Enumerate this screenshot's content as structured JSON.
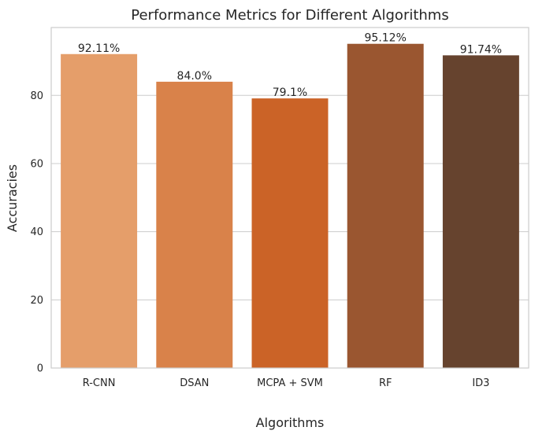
{
  "chart_data": {
    "type": "bar",
    "title": "Performance Metrics for Different Algorithms",
    "xlabel": "Algorithms",
    "ylabel": "Accuracies",
    "categories": [
      "R-CNN",
      "DSAN",
      "MCPA + SVM",
      "RF",
      "ID3"
    ],
    "values": [
      92.11,
      84.0,
      79.1,
      95.12,
      91.74
    ],
    "data_labels": [
      "92.11%",
      "84.0%",
      "79.1%",
      "95.12%",
      "91.74%"
    ],
    "colors": [
      "#e59e6a",
      "#d9824a",
      "#cb6327",
      "#9a5630",
      "#66432e"
    ],
    "ylim": [
      0,
      99.9
    ],
    "yticks": [
      0,
      20,
      40,
      60,
      80
    ],
    "ytick_labels": [
      "0",
      "20",
      "40",
      "60",
      "80"
    ],
    "grid": true,
    "grid_axis": "y"
  }
}
